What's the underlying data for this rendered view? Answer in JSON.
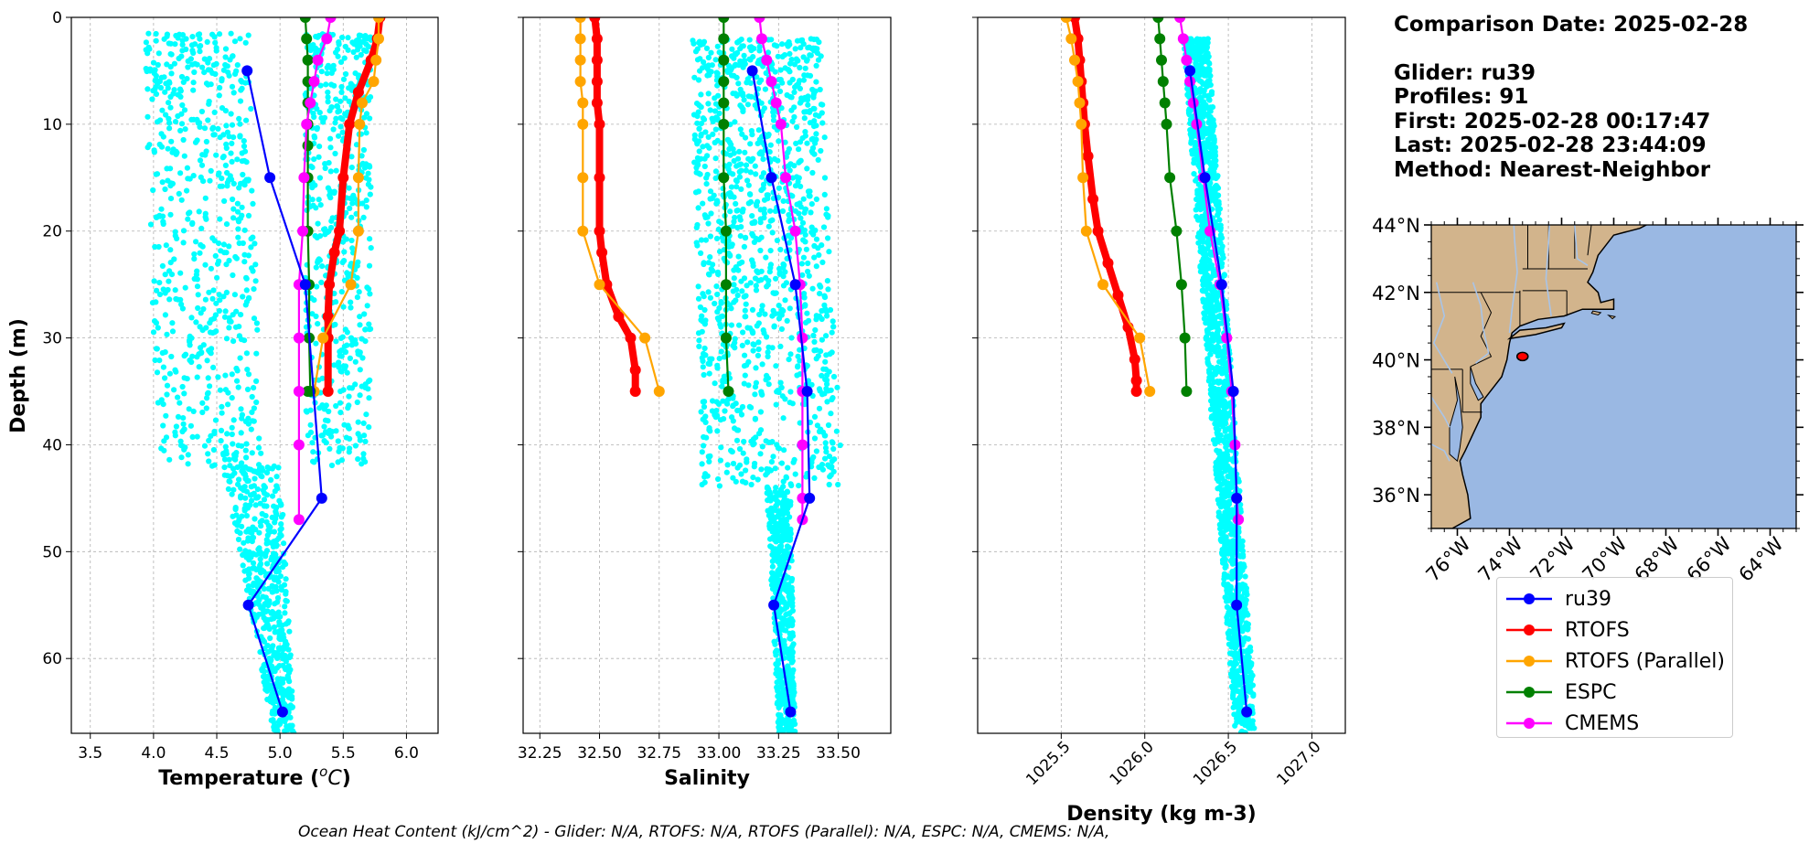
{
  "info": {
    "comparison_date": "Comparison Date: 2025-02-28",
    "glider": "Glider: ru39",
    "profiles": "Profiles: 91",
    "first": "First: 2025-02-28 00:17:47",
    "last": "Last: 2025-02-28 23:44:09",
    "method": "Method: Nearest-Neighbor"
  },
  "footer": {
    "ohc": "Ocean Heat Content (kJ/cm^2) - Glider: N/A,  RTOFS: N/A,  RTOFS (Parallel): N/A,  ESPC: N/A,  CMEMS: N/A,"
  },
  "colors": {
    "scatter": "#00ffff",
    "ru39": "#0000ff",
    "rtofs": "#ff0000",
    "rtofs_parallel": "#ffa500",
    "espc": "#008000",
    "cmems": "#ff00ff",
    "land": "#d2b48c",
    "ocean": "#9ab8e3",
    "river": "#a8c4e8"
  },
  "legend": [
    {
      "label": "ru39",
      "color": "#0000ff"
    },
    {
      "label": "RTOFS",
      "color": "#ff0000"
    },
    {
      "label": "RTOFS (Parallel)",
      "color": "#ffa500"
    },
    {
      "label": "ESPC",
      "color": "#008000"
    },
    {
      "label": "CMEMS",
      "color": "#ff00ff"
    }
  ],
  "map": {
    "lat_ticks": [
      {
        "v": 44,
        "label": "44°N"
      },
      {
        "v": 42,
        "label": "42°N"
      },
      {
        "v": 40,
        "label": "40°N"
      },
      {
        "v": 38,
        "label": "38°N"
      },
      {
        "v": 36,
        "label": "36°N"
      }
    ],
    "lon_ticks": [
      {
        "v": -76,
        "label": "76°W"
      },
      {
        "v": -74,
        "label": "74°W"
      },
      {
        "v": -72,
        "label": "72°W"
      },
      {
        "v": -70,
        "label": "70°W"
      },
      {
        "v": -68,
        "label": "68°W"
      },
      {
        "v": -66,
        "label": "66°W"
      },
      {
        "v": -64,
        "label": "64°W"
      }
    ],
    "extent": {
      "lon": [
        -77,
        -63
      ],
      "lat": [
        35,
        44
      ]
    },
    "glider_position": {
      "lon": -73.5,
      "lat": 40.1
    }
  },
  "chart_data": [
    {
      "type": "line",
      "xlabel": "Temperature (°C)",
      "ylabel": "Depth (m)",
      "xlim": [
        3.35,
        6.25
      ],
      "ylim": [
        67,
        0
      ],
      "xticks": [
        3.5,
        4.0,
        4.5,
        5.0,
        5.5,
        6.0
      ],
      "xtick_labels": [
        "3.5",
        "4.0",
        "4.5",
        "5.0",
        "5.5",
        "6.0"
      ],
      "yticks": [
        0,
        10,
        20,
        30,
        40,
        50,
        60
      ],
      "grid": true,
      "scatter": {
        "name": "Glider observations",
        "x_range": [
          3.9,
          5.75
        ],
        "depth_range": [
          1.5,
          67
        ]
      },
      "series": [
        {
          "name": "ru39",
          "x": [
            4.74,
            4.92,
            5.2,
            5.33,
            4.75,
            5.02
          ],
          "y": [
            5,
            15,
            25,
            45,
            55,
            65
          ]
        },
        {
          "name": "RTOFS",
          "x": [
            5.79,
            5.77,
            5.72,
            5.62,
            5.55,
            5.5,
            5.47,
            5.43,
            5.39,
            5.38,
            5.38,
            5.38
          ],
          "y": [
            0,
            2,
            4,
            7,
            10,
            15,
            20,
            22,
            25,
            28,
            30,
            35
          ]
        },
        {
          "name": "RTOFS (Parallel)",
          "x": [
            5.78,
            5.78,
            5.76,
            5.74,
            5.65,
            5.63,
            5.62,
            5.62,
            5.56,
            5.34,
            5.27
          ],
          "y": [
            0,
            2,
            4,
            6,
            8,
            10,
            15,
            20,
            25,
            30,
            35
          ]
        },
        {
          "name": "ESPC",
          "x": [
            5.2,
            5.21,
            5.22,
            5.22,
            5.22,
            5.22,
            5.22,
            5.22,
            5.22,
            5.23,
            5.23,
            5.24,
            5.22
          ],
          "y": [
            0,
            2,
            4,
            6,
            8,
            10,
            12,
            15,
            20,
            25,
            30,
            35,
            35
          ]
        },
        {
          "name": "CMEMS",
          "x": [
            5.4,
            5.37,
            5.3,
            5.27,
            5.24,
            5.21,
            5.19,
            5.18,
            5.15,
            5.15,
            5.15,
            5.15,
            5.15
          ],
          "y": [
            0,
            2,
            4,
            6,
            8,
            10,
            15,
            20,
            25,
            30,
            35,
            40,
            47
          ]
        }
      ]
    },
    {
      "type": "line",
      "xlabel": "Salinity",
      "xlim": [
        32.18,
        33.72
      ],
      "ylim": [
        67,
        0
      ],
      "xticks": [
        32.25,
        32.5,
        32.75,
        33.0,
        33.25,
        33.5
      ],
      "xtick_labels": [
        "32.25",
        "32.50",
        "32.75",
        "33.00",
        "33.25",
        "33.50"
      ],
      "yticks": [
        0,
        10,
        20,
        30,
        40,
        50,
        60
      ],
      "grid": true,
      "scatter": {
        "name": "Glider observations",
        "x_range": [
          32.88,
          33.52
        ],
        "depth_range": [
          2,
          67
        ]
      },
      "series": [
        {
          "name": "ru39",
          "x": [
            33.14,
            33.22,
            33.32,
            33.37,
            33.38,
            33.23,
            33.3
          ],
          "y": [
            5,
            15,
            25,
            35,
            45,
            55,
            65
          ]
        },
        {
          "name": "RTOFS",
          "x": [
            32.48,
            32.49,
            32.49,
            32.49,
            32.49,
            32.5,
            32.5,
            32.5,
            32.51,
            32.53,
            32.58,
            32.63,
            32.65,
            32.65
          ],
          "y": [
            0,
            2,
            4,
            6,
            8,
            10,
            15,
            20,
            22,
            25,
            28,
            30,
            33,
            35
          ]
        },
        {
          "name": "RTOFS (Parallel)",
          "x": [
            32.42,
            32.42,
            32.42,
            32.42,
            32.43,
            32.43,
            32.43,
            32.43,
            32.5,
            32.69,
            32.75
          ],
          "y": [
            0,
            2,
            4,
            6,
            8,
            10,
            15,
            20,
            25,
            30,
            35
          ]
        },
        {
          "name": "ESPC",
          "x": [
            33.02,
            33.02,
            33.02,
            33.02,
            33.02,
            33.02,
            33.02,
            33.03,
            33.03,
            33.03,
            33.04
          ],
          "y": [
            0,
            2,
            4,
            6,
            8,
            10,
            15,
            20,
            25,
            30,
            35
          ]
        },
        {
          "name": "CMEMS",
          "x": [
            33.17,
            33.18,
            33.2,
            33.22,
            33.24,
            33.26,
            33.28,
            33.32,
            33.34,
            33.35,
            33.35,
            33.35,
            33.35,
            33.35
          ],
          "y": [
            0,
            2,
            4,
            6,
            8,
            10,
            15,
            20,
            25,
            30,
            35,
            40,
            45,
            47
          ]
        }
      ]
    },
    {
      "type": "line",
      "xlabel": "Density (kg m-3)",
      "xlim": [
        1025.0,
        1027.2
      ],
      "ylim": [
        67,
        0
      ],
      "xticks": [
        1025.5,
        1026.0,
        1026.5,
        1027.0
      ],
      "xtick_labels": [
        "1025.5",
        "1026.0",
        "1026.5",
        "1027.0"
      ],
      "yticks": [
        0,
        10,
        20,
        30,
        40,
        50,
        60
      ],
      "grid": true,
      "scatter": {
        "name": "Glider observations",
        "x_range": [
          1026.22,
          1026.65
        ],
        "depth_range": [
          2,
          67
        ]
      },
      "series": [
        {
          "name": "ru39",
          "x": [
            1026.27,
            1026.36,
            1026.46,
            1026.53,
            1026.55,
            1026.55,
            1026.61
          ],
          "y": [
            5,
            15,
            25,
            35,
            45,
            55,
            65
          ]
        },
        {
          "name": "RTOFS",
          "x": [
            1025.58,
            1025.6,
            1025.61,
            1025.62,
            1025.63,
            1025.64,
            1025.66,
            1025.69,
            1025.72,
            1025.78,
            1025.84,
            1025.9,
            1025.94,
            1025.95,
            1025.95
          ],
          "y": [
            0,
            2,
            4,
            6,
            8,
            10,
            13,
            17,
            20,
            23,
            26,
            29,
            32,
            34,
            35
          ]
        },
        {
          "name": "RTOFS (Parallel)",
          "x": [
            1025.53,
            1025.56,
            1025.58,
            1025.6,
            1025.61,
            1025.62,
            1025.63,
            1025.65,
            1025.75,
            1025.97,
            1026.03
          ],
          "y": [
            0,
            2,
            4,
            6,
            8,
            10,
            15,
            20,
            25,
            30,
            35
          ]
        },
        {
          "name": "ESPC",
          "x": [
            1026.08,
            1026.09,
            1026.1,
            1026.11,
            1026.12,
            1026.13,
            1026.15,
            1026.19,
            1026.22,
            1026.24,
            1026.25
          ],
          "y": [
            0,
            2,
            4,
            6,
            8,
            10,
            15,
            20,
            25,
            30,
            35
          ]
        },
        {
          "name": "CMEMS",
          "x": [
            1026.21,
            1026.23,
            1026.25,
            1026.27,
            1026.29,
            1026.31,
            1026.35,
            1026.39,
            1026.45,
            1026.49,
            1026.52,
            1026.54,
            1026.55,
            1026.56
          ],
          "y": [
            0,
            2,
            4,
            6,
            8,
            10,
            15,
            20,
            25,
            30,
            35,
            40,
            45,
            47
          ]
        }
      ]
    }
  ]
}
